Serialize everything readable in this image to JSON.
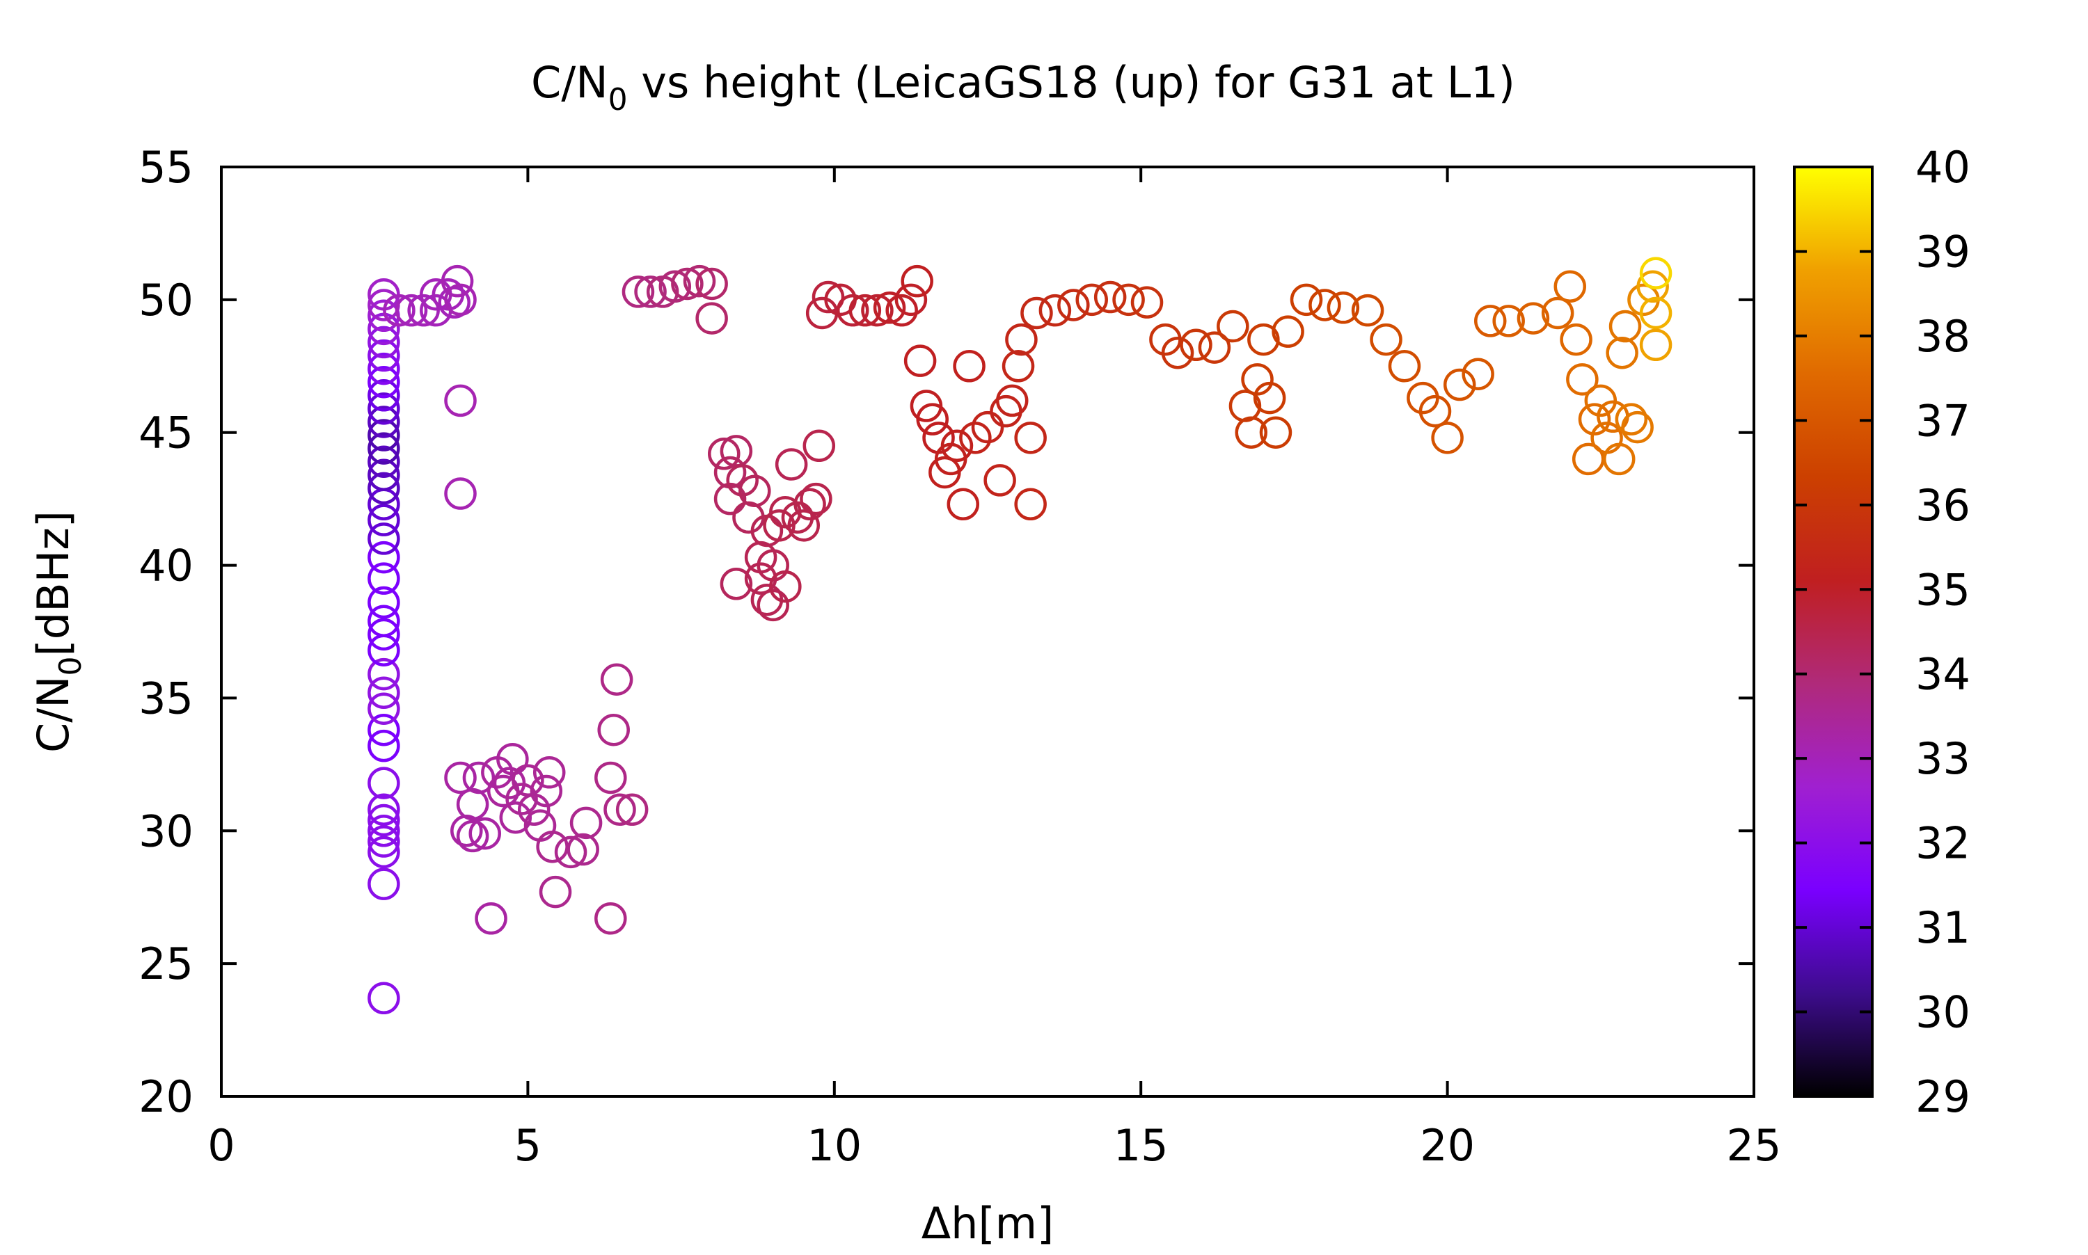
{
  "chart_data": {
    "type": "scatter",
    "title": "C/N",
    "title_sub": "0",
    "title_rest": " vs height (LeicaGS18 (up) for G31 at L1)",
    "xlabel": "Δh[m]",
    "ylabel": "C/N",
    "ylabel_sub": "0",
    "ylabel_rest": "[dBHz]",
    "xlim": [
      0,
      25
    ],
    "ylim": [
      20,
      55
    ],
    "xticks": [
      "0",
      "5",
      "10",
      "15",
      "20",
      "25"
    ],
    "yticks": [
      "20",
      "25",
      "30",
      "35",
      "40",
      "45",
      "50",
      "55"
    ],
    "colorbar": {
      "range": [
        29,
        40
      ],
      "ticks": [
        "29",
        "30",
        "31",
        "32",
        "33",
        "34",
        "35",
        "36",
        "37",
        "38",
        "39",
        "40"
      ],
      "colors": [
        "#000000",
        "#3d0c8c",
        "#7a00ff",
        "#a020d0",
        "#b02a7a",
        "#c01f20",
        "#cc4000",
        "#e06a00",
        "#f0a000",
        "#ffff00"
      ]
    },
    "marker": "open-circle",
    "points": [
      [
        2.65,
        23.7,
        32
      ],
      [
        2.65,
        28.0,
        32
      ],
      [
        2.65,
        29.2,
        32
      ],
      [
        2.65,
        29.6,
        32
      ],
      [
        2.65,
        30.0,
        32
      ],
      [
        2.65,
        30.4,
        32
      ],
      [
        2.65,
        30.8,
        32
      ],
      [
        2.65,
        31.8,
        32
      ],
      [
        2.65,
        33.2,
        31.5
      ],
      [
        2.65,
        33.8,
        31.5
      ],
      [
        2.65,
        34.6,
        32.2
      ],
      [
        2.65,
        35.2,
        32.2
      ],
      [
        2.65,
        35.9,
        32.2
      ],
      [
        2.65,
        36.8,
        31.5
      ],
      [
        2.65,
        37.4,
        31.5
      ],
      [
        2.65,
        37.9,
        31.5
      ],
      [
        2.65,
        38.6,
        31.5
      ],
      [
        2.65,
        39.5,
        31.5
      ],
      [
        2.65,
        40.3,
        31.5
      ],
      [
        2.65,
        41.0,
        31
      ],
      [
        2.65,
        41.7,
        31
      ],
      [
        2.65,
        42.3,
        31
      ],
      [
        2.65,
        42.9,
        30.8
      ],
      [
        2.65,
        43.4,
        30.8
      ],
      [
        2.65,
        43.9,
        30.8
      ],
      [
        2.65,
        44.4,
        30.6
      ],
      [
        2.65,
        44.9,
        30.6
      ],
      [
        2.65,
        45.4,
        30.8
      ],
      [
        2.65,
        45.9,
        31
      ],
      [
        2.65,
        46.4,
        31.2
      ],
      [
        2.65,
        46.9,
        31.5
      ],
      [
        2.65,
        47.4,
        31.8
      ],
      [
        2.65,
        47.9,
        32
      ],
      [
        2.65,
        48.4,
        32.2
      ],
      [
        2.65,
        48.9,
        32.4
      ],
      [
        2.65,
        49.4,
        32.6
      ],
      [
        2.65,
        49.8,
        32.8
      ],
      [
        2.65,
        50.2,
        32.8
      ],
      [
        2.9,
        49.6,
        33
      ],
      [
        3.1,
        49.6,
        33
      ],
      [
        3.3,
        49.6,
        33
      ],
      [
        3.5,
        49.6,
        33
      ],
      [
        3.5,
        50.2,
        33
      ],
      [
        3.7,
        50.2,
        33
      ],
      [
        3.8,
        49.9,
        33
      ],
      [
        3.85,
        50.7,
        33.1
      ],
      [
        3.9,
        50.0,
        33.1
      ],
      [
        3.9,
        46.2,
        33.1
      ],
      [
        3.9,
        42.7,
        33.1
      ],
      [
        3.9,
        32.0,
        33.3
      ],
      [
        4.0,
        30.0,
        33.3
      ],
      [
        4.1,
        29.8,
        33.3
      ],
      [
        4.1,
        31.0,
        33.3
      ],
      [
        4.2,
        32.0,
        33.3
      ],
      [
        4.3,
        29.9,
        33.3
      ],
      [
        4.4,
        26.7,
        33.3
      ],
      [
        4.5,
        32.2,
        33.4
      ],
      [
        4.6,
        31.5,
        33.4
      ],
      [
        4.7,
        31.8,
        33.4
      ],
      [
        4.75,
        32.7,
        33.4
      ],
      [
        4.8,
        30.5,
        33.4
      ],
      [
        4.9,
        31.2,
        33.5
      ],
      [
        5.0,
        31.9,
        33.5
      ],
      [
        5.1,
        30.8,
        33.5
      ],
      [
        5.2,
        30.2,
        33.5
      ],
      [
        5.3,
        31.5,
        33.5
      ],
      [
        5.35,
        32.2,
        33.5
      ],
      [
        5.4,
        29.4,
        33.6
      ],
      [
        5.45,
        27.7,
        33.6
      ],
      [
        5.7,
        29.2,
        33.6
      ],
      [
        5.9,
        29.3,
        33.6
      ],
      [
        5.95,
        30.3,
        33.6
      ],
      [
        6.35,
        26.7,
        33.7
      ],
      [
        6.35,
        32.0,
        33.7
      ],
      [
        6.4,
        33.8,
        33.7
      ],
      [
        6.45,
        35.7,
        33.7
      ],
      [
        6.5,
        30.8,
        33.7
      ],
      [
        6.7,
        30.8,
        33.8
      ],
      [
        6.8,
        50.3,
        33.8
      ],
      [
        7.0,
        50.3,
        33.8
      ],
      [
        7.2,
        50.3,
        33.9
      ],
      [
        7.4,
        50.5,
        33.9
      ],
      [
        7.6,
        50.6,
        34
      ],
      [
        7.8,
        50.7,
        34
      ],
      [
        8.0,
        50.6,
        34.1
      ],
      [
        8.0,
        49.3,
        34.1
      ],
      [
        8.2,
        44.2,
        34.2
      ],
      [
        8.3,
        43.5,
        34.2
      ],
      [
        8.3,
        42.5,
        34.2
      ],
      [
        8.4,
        39.3,
        34.3
      ],
      [
        8.4,
        44.3,
        34.2
      ],
      [
        8.5,
        43.2,
        34.3
      ],
      [
        8.6,
        41.8,
        34.3
      ],
      [
        8.7,
        42.8,
        34.3
      ],
      [
        8.8,
        40.3,
        34.4
      ],
      [
        8.8,
        39.5,
        34.4
      ],
      [
        8.9,
        38.7,
        34.4
      ],
      [
        8.9,
        41.3,
        34.4
      ],
      [
        9.0,
        38.5,
        34.4
      ],
      [
        9.0,
        40.0,
        34.4
      ],
      [
        9.1,
        41.5,
        34.5
      ],
      [
        9.2,
        42.0,
        34.5
      ],
      [
        9.2,
        39.2,
        34.5
      ],
      [
        9.3,
        43.8,
        34.4
      ],
      [
        9.4,
        41.8,
        34.5
      ],
      [
        9.5,
        41.5,
        34.5
      ],
      [
        9.6,
        42.3,
        34.5
      ],
      [
        9.7,
        42.5,
        34.5
      ],
      [
        9.75,
        44.5,
        34.5
      ],
      [
        9.8,
        49.5,
        34.7
      ],
      [
        9.9,
        50.1,
        34.7
      ],
      [
        10.1,
        50.0,
        34.8
      ],
      [
        10.3,
        49.6,
        34.8
      ],
      [
        10.5,
        49.6,
        34.9
      ],
      [
        10.7,
        49.6,
        34.9
      ],
      [
        10.9,
        49.7,
        35
      ],
      [
        11.1,
        49.6,
        35
      ],
      [
        11.25,
        50.0,
        35
      ],
      [
        11.35,
        50.7,
        35.1
      ],
      [
        11.4,
        47.7,
        35.1
      ],
      [
        11.5,
        46.0,
        35.1
      ],
      [
        11.6,
        45.5,
        35.1
      ],
      [
        11.7,
        44.8,
        35.1
      ],
      [
        11.8,
        43.5,
        35.2
      ],
      [
        11.9,
        44.0,
        35.2
      ],
      [
        12.0,
        44.5,
        35.2
      ],
      [
        12.1,
        42.3,
        35.2
      ],
      [
        12.2,
        47.5,
        35.2
      ],
      [
        12.3,
        44.8,
        35.3
      ],
      [
        12.5,
        45.2,
        35.3
      ],
      [
        12.7,
        43.2,
        35.3
      ],
      [
        12.8,
        45.8,
        35.3
      ],
      [
        12.9,
        46.2,
        35.3
      ],
      [
        13.0,
        47.5,
        35.4
      ],
      [
        13.05,
        48.5,
        35.4
      ],
      [
        13.2,
        42.3,
        35.4
      ],
      [
        13.2,
        44.8,
        35.4
      ],
      [
        13.3,
        49.5,
        35.5
      ],
      [
        13.6,
        49.6,
        35.5
      ],
      [
        13.9,
        49.8,
        35.6
      ],
      [
        14.2,
        50.0,
        35.7
      ],
      [
        14.5,
        50.1,
        35.7
      ],
      [
        14.8,
        50.0,
        35.8
      ],
      [
        15.1,
        49.9,
        35.8
      ],
      [
        15.4,
        48.5,
        35.9
      ],
      [
        15.6,
        48.0,
        35.9
      ],
      [
        15.9,
        48.3,
        36
      ],
      [
        16.2,
        48.2,
        36
      ],
      [
        16.5,
        49.0,
        36.1
      ],
      [
        16.7,
        46.0,
        36.1
      ],
      [
        16.8,
        45.0,
        36.1
      ],
      [
        16.9,
        47.0,
        36.2
      ],
      [
        17.0,
        48.5,
        36.2
      ],
      [
        17.1,
        46.3,
        36.2
      ],
      [
        17.2,
        45.0,
        36.2
      ],
      [
        17.4,
        48.8,
        36.3
      ],
      [
        17.7,
        50.0,
        36.3
      ],
      [
        18.0,
        49.8,
        36.4
      ],
      [
        18.3,
        49.7,
        36.5
      ],
      [
        18.7,
        49.6,
        36.6
      ],
      [
        19.0,
        48.5,
        36.7
      ],
      [
        19.3,
        47.5,
        36.7
      ],
      [
        19.6,
        46.3,
        36.8
      ],
      [
        19.8,
        45.8,
        36.8
      ],
      [
        20.0,
        44.8,
        36.9
      ],
      [
        20.2,
        46.8,
        36.9
      ],
      [
        20.5,
        47.2,
        37
      ],
      [
        20.7,
        49.2,
        37.1
      ],
      [
        21.0,
        49.2,
        37.2
      ],
      [
        21.4,
        49.3,
        37.3
      ],
      [
        21.8,
        49.5,
        37.4
      ],
      [
        22.0,
        50.5,
        37.5
      ],
      [
        22.1,
        48.5,
        37.5
      ],
      [
        22.2,
        47.0,
        37.6
      ],
      [
        22.3,
        44.0,
        37.6
      ],
      [
        22.4,
        45.5,
        37.6
      ],
      [
        22.5,
        46.2,
        37.7
      ],
      [
        22.6,
        44.8,
        37.7
      ],
      [
        22.7,
        45.6,
        37.7
      ],
      [
        22.8,
        44.0,
        37.8
      ],
      [
        22.85,
        48.0,
        37.8
      ],
      [
        22.9,
        49.0,
        37.8
      ],
      [
        23.0,
        45.5,
        37.9
      ],
      [
        23.1,
        45.2,
        37.9
      ],
      [
        23.2,
        50.0,
        38.2
      ],
      [
        23.35,
        50.5,
        38.8
      ],
      [
        23.4,
        51.0,
        39.5
      ],
      [
        23.4,
        49.5,
        39
      ],
      [
        23.4,
        48.3,
        38.8
      ]
    ]
  }
}
